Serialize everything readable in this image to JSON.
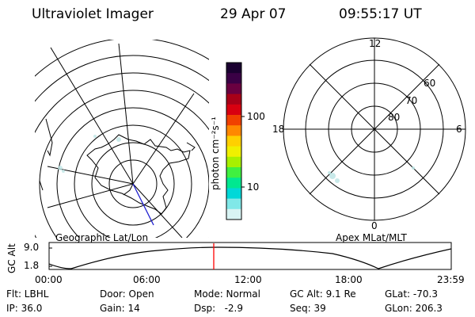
{
  "header": {
    "instrument": "Ultraviolet Imager",
    "date": "29 Apr 07",
    "time": "09:55:17 UT"
  },
  "left_panel": {
    "caption": "Geographic Lat/Lon"
  },
  "right_panel": {
    "caption": "Apex MLat/MLT",
    "mlt_labels": {
      "top": "12",
      "left": "18",
      "right": "6",
      "bottom": "0"
    },
    "lat_labels": [
      "60",
      "70",
      "80"
    ]
  },
  "colorbar": {
    "unit_label": "photon cm⁻²s⁻¹",
    "ticks": [
      "100",
      "10"
    ],
    "colors": [
      "#1a0030",
      "#3a0045",
      "#6a0040",
      "#a80018",
      "#d80010",
      "#f04000",
      "#ff8800",
      "#ffd000",
      "#f0f000",
      "#a8f000",
      "#40f040",
      "#00e890",
      "#00d8d8",
      "#80e8e8",
      "#d8f4f4"
    ]
  },
  "altitude_plot": {
    "ylabel": "GC Alt",
    "yticks": [
      "9.0",
      "1.8"
    ],
    "xticks": [
      "00:00",
      "06:00",
      "12:00",
      "18:00",
      "23:59"
    ],
    "marker_color": "#ff0000"
  },
  "info": {
    "flt": "Flt: LBHL",
    "ip": "IP: 36.0",
    "door": "Door: Open",
    "gain": "Gain: 14",
    "mode": "Mode: Normal",
    "dsp": "Dsp:   -2.9",
    "gc_alt": "GC Alt: 9.1 Re",
    "seq": "Seq: 39",
    "glat": "GLat: -70.3",
    "glon": "GLon: 206.3"
  }
}
